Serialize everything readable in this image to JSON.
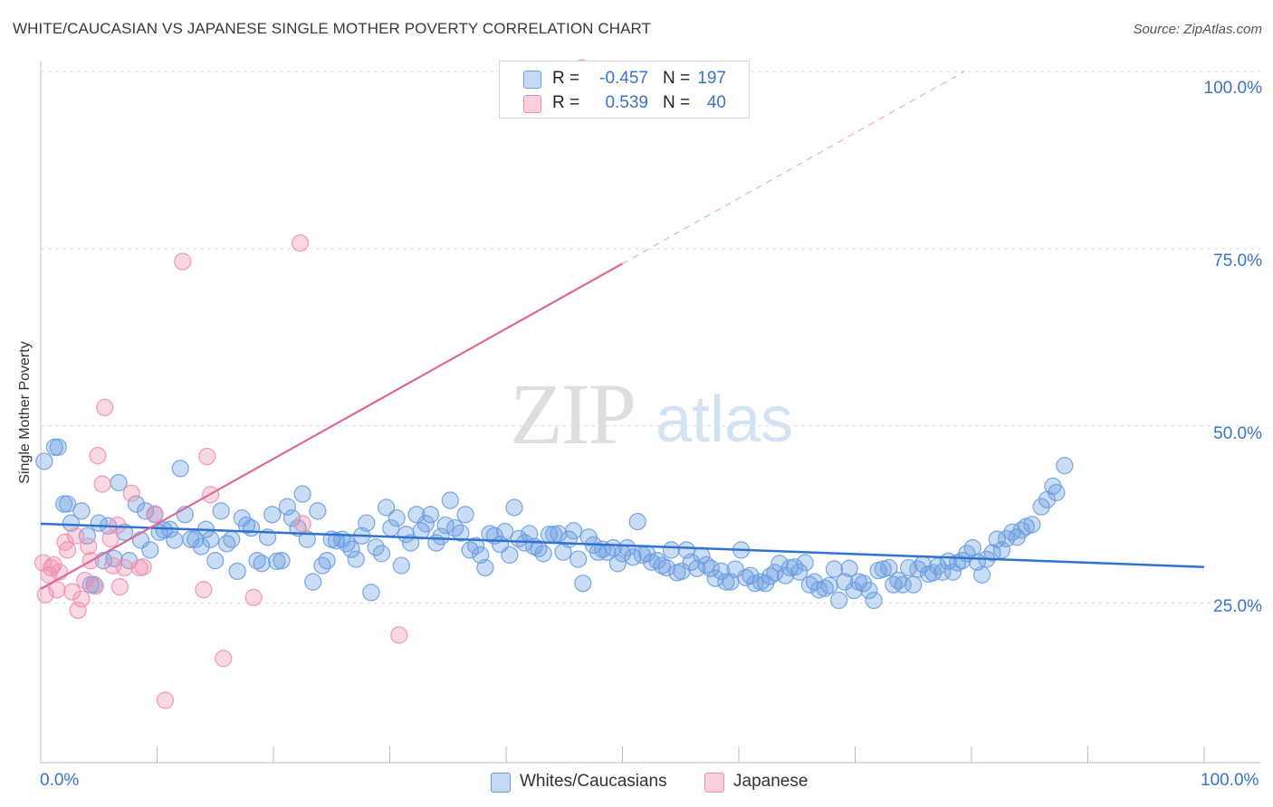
{
  "header": {
    "title": "WHITE/CAUCASIAN VS JAPANESE SINGLE MOTHER POVERTY CORRELATION CHART",
    "source": "Source: ZipAtlas.com"
  },
  "watermark": {
    "zip": "ZIP",
    "atlas": "atlas"
  },
  "stats": {
    "rows": [
      {
        "r_label": "R =",
        "r_value": "-0.457",
        "n_label": "N =",
        "n_value": "197",
        "color": "#6a9ee0"
      },
      {
        "r_label": "R =",
        "r_value": "0.539",
        "n_label": "N =",
        "n_value": "40",
        "color": "#ee8fb0"
      }
    ]
  },
  "legend": {
    "items": [
      {
        "label": "Whites/Caucasians",
        "color": "#6a9ee0"
      },
      {
        "label": "Japanese",
        "color": "#ee8fb0"
      }
    ]
  },
  "axes": {
    "ylabel": "Single Mother Poverty",
    "x_tick_labels": [
      "0.0%",
      "100.0%"
    ],
    "y_tick_labels": [
      "100.0%",
      "75.0%",
      "50.0%",
      "25.0%"
    ]
  },
  "colors": {
    "blue": "#6a9ee0",
    "blue_line": "#2f72d0",
    "pink": "#ee8fb0",
    "pink_line": "#e0679a",
    "grid": "#dcdcdc"
  },
  "chart_data": {
    "type": "scatter",
    "xlim": [
      0,
      100
    ],
    "ylim": [
      2.5,
      100
    ],
    "x_unit": "%",
    "y_unit": "%",
    "y_ticks": [
      25,
      50,
      75,
      100
    ],
    "x_ticks": [
      0,
      10,
      20,
      30,
      40,
      50,
      60,
      70,
      80,
      90,
      100
    ],
    "grid": true,
    "series": [
      {
        "name": "Whites/Caucasians",
        "r": -0.457,
        "n": 197,
        "trend": {
          "x": [
            0,
            100
          ],
          "y": [
            36.2,
            30.1
          ]
        },
        "points": [
          [
            0.3,
            45
          ],
          [
            1.2,
            47
          ],
          [
            1.5,
            47
          ],
          [
            2,
            39
          ],
          [
            2.3,
            39
          ],
          [
            2.6,
            36.3
          ],
          [
            3.5,
            38
          ],
          [
            4,
            34.5
          ],
          [
            4.3,
            27.6
          ],
          [
            4.6,
            27.6
          ],
          [
            5,
            36.3
          ],
          [
            5.4,
            31
          ],
          [
            5.8,
            35.9
          ],
          [
            6.3,
            31.3
          ],
          [
            6.7,
            42
          ],
          [
            7.2,
            35
          ],
          [
            7.6,
            31
          ],
          [
            8.2,
            39
          ],
          [
            8.6,
            33.9
          ],
          [
            9,
            38
          ],
          [
            9.4,
            32.5
          ],
          [
            9.8,
            37.5
          ],
          [
            10.2,
            35
          ],
          [
            10.6,
            35.3
          ],
          [
            11.1,
            35.4
          ],
          [
            11.5,
            33.9
          ],
          [
            12,
            44
          ],
          [
            12.4,
            37.5
          ],
          [
            12.9,
            34
          ],
          [
            13.3,
            34
          ],
          [
            13.8,
            33
          ],
          [
            14.2,
            35.4
          ],
          [
            14.6,
            34
          ],
          [
            15,
            31
          ],
          [
            15.5,
            38
          ],
          [
            16,
            33.4
          ],
          [
            16.4,
            34
          ],
          [
            16.9,
            29.5
          ],
          [
            17.3,
            37
          ],
          [
            17.7,
            36
          ],
          [
            18.1,
            35.6
          ],
          [
            18.6,
            31
          ],
          [
            19,
            30.6
          ],
          [
            19.5,
            34.3
          ],
          [
            19.9,
            37.5
          ],
          [
            20.3,
            30.9
          ],
          [
            20.7,
            31
          ],
          [
            21.2,
            38.6
          ],
          [
            21.6,
            37
          ],
          [
            22.1,
            35.6
          ],
          [
            22.5,
            40.4
          ],
          [
            22.9,
            34
          ],
          [
            23.4,
            28
          ],
          [
            23.8,
            38
          ],
          [
            24.2,
            30.3
          ],
          [
            24.6,
            31
          ],
          [
            25,
            34
          ],
          [
            25.4,
            33.8
          ],
          [
            25.9,
            34
          ],
          [
            26.3,
            33.4
          ],
          [
            26.7,
            32.6
          ],
          [
            27.1,
            31.2
          ],
          [
            27.6,
            34.5
          ],
          [
            28,
            36.3
          ],
          [
            28.4,
            26.5
          ],
          [
            28.8,
            32.9
          ],
          [
            29.3,
            32
          ],
          [
            29.7,
            38.5
          ],
          [
            30.1,
            35.6
          ],
          [
            30.6,
            37
          ],
          [
            31,
            30.3
          ],
          [
            31.4,
            34.7
          ],
          [
            31.8,
            33.5
          ],
          [
            32.3,
            37.5
          ],
          [
            32.7,
            35.2
          ],
          [
            33.1,
            36.2
          ],
          [
            33.5,
            37.5
          ],
          [
            34,
            33.5
          ],
          [
            34.4,
            34.4
          ],
          [
            34.8,
            36
          ],
          [
            35.2,
            39.5
          ],
          [
            35.6,
            35.6
          ],
          [
            36.1,
            34.9
          ],
          [
            36.5,
            37.5
          ],
          [
            36.9,
            32.5
          ],
          [
            37.4,
            33.1
          ],
          [
            37.8,
            31.8
          ],
          [
            38.2,
            30
          ],
          [
            38.6,
            34.8
          ],
          [
            39,
            34.5
          ],
          [
            39.5,
            33.3
          ],
          [
            39.9,
            35.1
          ],
          [
            40.3,
            31.8
          ],
          [
            40.7,
            38.5
          ],
          [
            41.1,
            34.1
          ],
          [
            41.6,
            33.5
          ],
          [
            42,
            34.8
          ],
          [
            42.4,
            33
          ],
          [
            42.8,
            32.7
          ],
          [
            43.2,
            32
          ],
          [
            43.7,
            34.7
          ],
          [
            44.1,
            34.7
          ],
          [
            44.5,
            34.8
          ],
          [
            44.9,
            32.2
          ],
          [
            45.4,
            34
          ],
          [
            45.8,
            35.2
          ],
          [
            46.2,
            31.2
          ],
          [
            46.6,
            27.8
          ],
          [
            47.1,
            34.3
          ],
          [
            47.5,
            33.2
          ],
          [
            47.9,
            32.2
          ],
          [
            48.3,
            32.6
          ],
          [
            48.7,
            32.2
          ],
          [
            49.2,
            32.8
          ],
          [
            49.6,
            30.6
          ],
          [
            50,
            32
          ],
          [
            50.4,
            32.8
          ],
          [
            50.9,
            31.5
          ],
          [
            51.3,
            36.5
          ],
          [
            51.7,
            31.8
          ],
          [
            52.1,
            32
          ],
          [
            52.5,
            30.8
          ],
          [
            53,
            31
          ],
          [
            53.4,
            30.3
          ],
          [
            53.8,
            30
          ],
          [
            54.2,
            32.5
          ],
          [
            54.7,
            29.3
          ],
          [
            55.1,
            29.5
          ],
          [
            55.5,
            32.5
          ],
          [
            55.9,
            30.8
          ],
          [
            56.4,
            29.9
          ],
          [
            56.8,
            31.7
          ],
          [
            57.2,
            30.4
          ],
          [
            57.6,
            29.9
          ],
          [
            58,
            28.5
          ],
          [
            58.5,
            29.5
          ],
          [
            58.9,
            28
          ],
          [
            59.3,
            28
          ],
          [
            59.7,
            29.8
          ],
          [
            60.2,
            32.5
          ],
          [
            60.6,
            28.6
          ],
          [
            61,
            28.9
          ],
          [
            61.4,
            27.8
          ],
          [
            61.9,
            28
          ],
          [
            62.3,
            27.8
          ],
          [
            62.7,
            28.8
          ],
          [
            63.1,
            29.3
          ],
          [
            63.5,
            30.6
          ],
          [
            64,
            28.9
          ],
          [
            64.4,
            30
          ],
          [
            64.8,
            30.1
          ],
          [
            65.2,
            29.4
          ],
          [
            65.7,
            30.7
          ],
          [
            66.1,
            27.6
          ],
          [
            66.5,
            28
          ],
          [
            66.9,
            26.9
          ],
          [
            67.4,
            27.1
          ],
          [
            67.8,
            27.5
          ],
          [
            68.2,
            29.8
          ],
          [
            68.6,
            25.4
          ],
          [
            69.1,
            28
          ],
          [
            69.5,
            29.9
          ],
          [
            69.9,
            26.8
          ],
          [
            70.3,
            28
          ],
          [
            70.7,
            27.8
          ],
          [
            71.2,
            26.8
          ],
          [
            71.6,
            25.4
          ],
          [
            72,
            29.6
          ],
          [
            72.4,
            29.8
          ],
          [
            72.9,
            30
          ],
          [
            73.3,
            27.6
          ],
          [
            73.7,
            28.2
          ],
          [
            74.1,
            27.6
          ],
          [
            74.6,
            30
          ],
          [
            75,
            27.6
          ],
          [
            75.4,
            29.8
          ],
          [
            75.8,
            30.5
          ],
          [
            76.3,
            29.1
          ],
          [
            76.7,
            29.3
          ],
          [
            77.1,
            30.2
          ],
          [
            77.5,
            29.4
          ],
          [
            78,
            30.9
          ],
          [
            78.4,
            29.4
          ],
          [
            78.8,
            30.7
          ],
          [
            79.2,
            31
          ],
          [
            79.6,
            32
          ],
          [
            80.1,
            32.8
          ],
          [
            80.5,
            30.8
          ],
          [
            80.9,
            29
          ],
          [
            81.3,
            31.2
          ],
          [
            81.8,
            32.1
          ],
          [
            82.2,
            34
          ],
          [
            82.6,
            32.5
          ],
          [
            83,
            34.1
          ],
          [
            83.5,
            35
          ],
          [
            83.9,
            34.3
          ],
          [
            84.3,
            35.3
          ],
          [
            84.7,
            35.8
          ],
          [
            85.2,
            36.1
          ],
          [
            86,
            38.6
          ],
          [
            86.5,
            39.6
          ],
          [
            87,
            41.5
          ],
          [
            87.3,
            40.6
          ],
          [
            88,
            44.4
          ]
        ]
      },
      {
        "name": "Japanese",
        "r": 0.539,
        "n": 40,
        "trend": {
          "x": [
            0,
            50
          ],
          "y": [
            27,
            72.9
          ]
        },
        "trend_extension": {
          "x": [
            50,
            100
          ],
          "y": [
            72.9,
            119
          ]
        },
        "points": [
          [
            0.2,
            30.7
          ],
          [
            0.4,
            26.2
          ],
          [
            0.7,
            29
          ],
          [
            0.9,
            30
          ],
          [
            1.1,
            30.4
          ],
          [
            1.4,
            26.9
          ],
          [
            1.6,
            29.4
          ],
          [
            2.1,
            33.6
          ],
          [
            2.3,
            32.5
          ],
          [
            2.7,
            26.6
          ],
          [
            3,
            34.5
          ],
          [
            3.2,
            24
          ],
          [
            3.5,
            25.6
          ],
          [
            3.8,
            28.2
          ],
          [
            4.1,
            33
          ],
          [
            4.3,
            31
          ],
          [
            4.7,
            27.4
          ],
          [
            4.9,
            45.8
          ],
          [
            5.3,
            41.8
          ],
          [
            5.5,
            52.6
          ],
          [
            6,
            34.1
          ],
          [
            6.2,
            30.3
          ],
          [
            6.6,
            36
          ],
          [
            6.8,
            27.3
          ],
          [
            7.2,
            30
          ],
          [
            7.8,
            40.5
          ],
          [
            8.5,
            30
          ],
          [
            8.8,
            30.1
          ],
          [
            9.8,
            37.6
          ],
          [
            10.7,
            11.3
          ],
          [
            12.2,
            73.2
          ],
          [
            14,
            26.9
          ],
          [
            14.3,
            45.7
          ],
          [
            14.6,
            40.3
          ],
          [
            15.7,
            17.2
          ],
          [
            18.3,
            25.8
          ],
          [
            22.3,
            75.8
          ],
          [
            30.8,
            20.5
          ],
          [
            46.5,
            100.5
          ],
          [
            22.5,
            36.2
          ]
        ]
      }
    ]
  }
}
